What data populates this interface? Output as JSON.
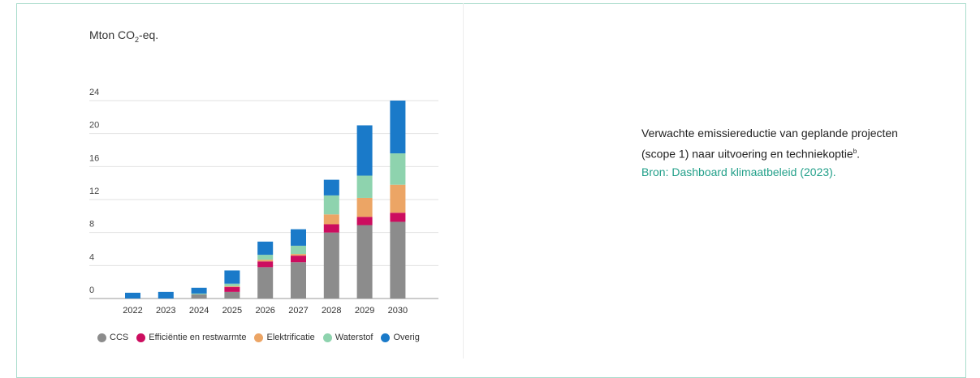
{
  "unit_label": {
    "base": "Mton CO",
    "sub": "2",
    "rest": "-eq."
  },
  "caption": {
    "text": "Verwachte emissiereductie van geplande projecten (scope 1) naar uitvoering en techniekoptie",
    "footnote_mark": "b",
    "trail": ".",
    "source": "Bron: Dashboard klimaatbeleid (2023)."
  },
  "colors": {
    "ccs": "#8c8c8c",
    "efficientie": "#cc0d5f",
    "elektrificatie": "#eca565",
    "waterstof": "#8ed3ae",
    "overig": "#1a7ac9"
  },
  "chart_data": {
    "type": "bar",
    "stacked": true,
    "categories": [
      "2022",
      "2023",
      "2024",
      "2025",
      "2026",
      "2027",
      "2028",
      "2029",
      "2030"
    ],
    "y_ticks": [
      "0",
      "4",
      "8",
      "12",
      "16",
      "20",
      "24"
    ],
    "ylim": [
      0,
      24
    ],
    "grid": true,
    "legend_position": "bottom",
    "ylabel": "Mton CO₂-eq.",
    "series": [
      {
        "key": "ccs",
        "name": "CCS",
        "color": "#8c8c8c",
        "values": [
          0,
          0,
          0.5,
          0.8,
          3.8,
          4.4,
          8.0,
          8.9,
          9.3
        ]
      },
      {
        "key": "efficientie",
        "name": "Efficiëntie en restwarmte",
        "color": "#cc0d5f",
        "values": [
          0,
          0,
          0,
          0.6,
          0.7,
          0.8,
          1.0,
          1.0,
          1.1
        ]
      },
      {
        "key": "elektrificatie",
        "name": "Elektrificatie",
        "color": "#eca565",
        "values": [
          0,
          0,
          0,
          0.1,
          0.2,
          0.2,
          1.2,
          2.3,
          3.4
        ]
      },
      {
        "key": "waterstof",
        "name": "Waterstof",
        "color": "#8ed3ae",
        "values": [
          0,
          0,
          0.1,
          0.3,
          0.6,
          1.0,
          2.3,
          2.7,
          3.8
        ]
      },
      {
        "key": "overig",
        "name": "Overig",
        "color": "#1a7ac9",
        "values": [
          0.7,
          0.8,
          0.7,
          1.6,
          1.6,
          2.0,
          1.9,
          6.1,
          6.4
        ]
      }
    ]
  }
}
